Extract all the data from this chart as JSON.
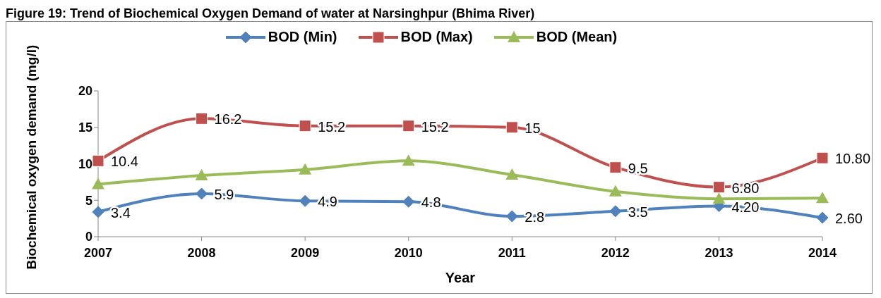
{
  "chart_data": {
    "type": "line",
    "title": "Figure 19: Trend of Biochemical Oxygen Demand of water at Narsinghpur (Bhima River)",
    "xlabel": "Year",
    "ylabel": "Biochemical oxygen demand (mg/l)",
    "categories": [
      "2007",
      "2008",
      "2009",
      "2010",
      "2011",
      "2012",
      "2013",
      "2014"
    ],
    "series": [
      {
        "name": "BOD (Min)",
        "color": "#4f81bd",
        "marker": "diamond",
        "values": [
          3.4,
          5.9,
          4.9,
          4.8,
          2.8,
          3.5,
          4.2,
          2.6
        ],
        "value_labels": [
          "3.4",
          "5.9",
          "4.9",
          "4.8",
          "2.8",
          "3.5",
          "4.20",
          "2.60"
        ]
      },
      {
        "name": "BOD  (Max)",
        "color": "#c0504d",
        "marker": "square",
        "values": [
          10.4,
          16.2,
          15.2,
          15.2,
          15,
          9.5,
          6.8,
          10.8
        ],
        "value_labels": [
          "10.4",
          "16.2",
          "15.2",
          "15.2",
          "15",
          "9.5",
          "6.80",
          "10.80"
        ]
      },
      {
        "name": "BOD (Mean)",
        "color": "#9bbb59",
        "marker": "triangle",
        "values": [
          7.2,
          8.4,
          9.2,
          10.4,
          8.5,
          6.2,
          5.2,
          5.3
        ]
      }
    ],
    "ylim": [
      0,
      20
    ],
    "yticks": [
      0,
      5,
      10,
      15,
      20
    ],
    "grid": false,
    "legend": "top",
    "line_style": "solid"
  }
}
